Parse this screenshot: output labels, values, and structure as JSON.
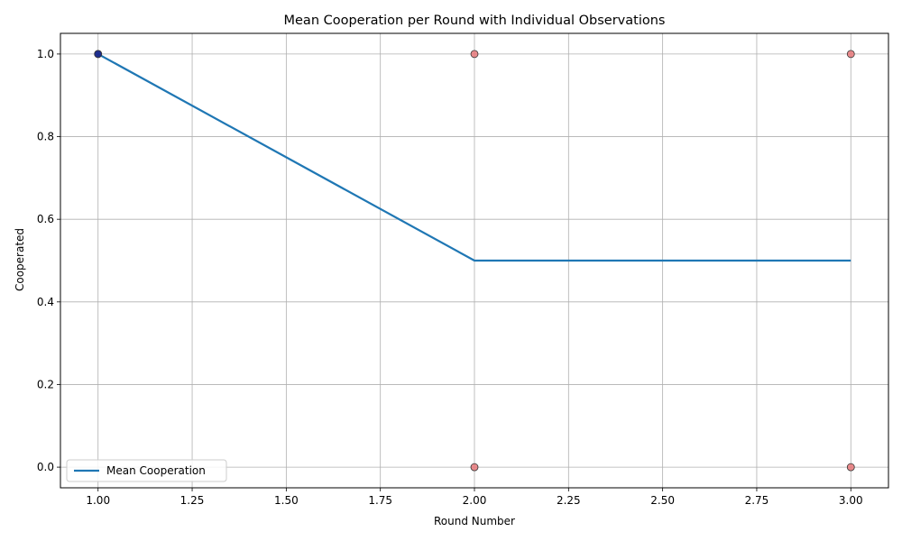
{
  "chart_data": {
    "type": "line",
    "title": "Mean Cooperation per Round with Individual Observations",
    "xlabel": "Round Number",
    "ylabel": "Cooperated",
    "xlim": [
      0.9,
      3.1
    ],
    "ylim": [
      -0.05,
      1.05
    ],
    "xticks": [
      1.0,
      1.25,
      1.5,
      1.75,
      2.0,
      2.25,
      2.5,
      2.75,
      3.0
    ],
    "xtick_labels": [
      "1.00",
      "1.25",
      "1.50",
      "1.75",
      "2.00",
      "2.25",
      "2.50",
      "2.75",
      "3.00"
    ],
    "yticks": [
      0.0,
      0.2,
      0.4,
      0.6,
      0.8,
      1.0
    ],
    "ytick_labels": [
      "0.0",
      "0.2",
      "0.4",
      "0.6",
      "0.8",
      "1.0"
    ],
    "grid": true,
    "legend_position": "lower-left",
    "series": [
      {
        "name": "Mean Cooperation",
        "kind": "line",
        "color": "#1f77b4",
        "x": [
          1,
          2,
          3
        ],
        "y": [
          1.0,
          0.5,
          0.5
        ]
      }
    ],
    "observations": [
      {
        "x": 1,
        "y": 1,
        "color": "#1a2a8c"
      },
      {
        "x": 1,
        "y": 1,
        "color": "#1a2a8c"
      },
      {
        "x": 2,
        "y": 1,
        "color": "#e8787a"
      },
      {
        "x": 2,
        "y": 0,
        "color": "#e8787a"
      },
      {
        "x": 3,
        "y": 1,
        "color": "#e8787a"
      },
      {
        "x": 3,
        "y": 0,
        "color": "#e8787a"
      }
    ]
  }
}
